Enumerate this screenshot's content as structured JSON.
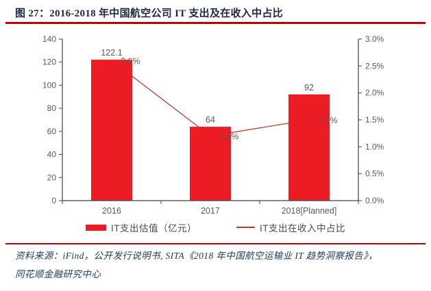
{
  "figure": {
    "title": "图 27：2016-2018 年中国航空公司 IT 支出及在收入中占比"
  },
  "chart_data": {
    "type": "bar",
    "subtype": "bar+line-dual-axis",
    "title": "2016-2018 年中国航空公司 IT 支出及在收入中占比",
    "categories": [
      "2016",
      "2017",
      "2018[Planned]"
    ],
    "series": [
      {
        "name": "IT支出估值（亿元）",
        "type": "bar",
        "axis": "left",
        "values": [
          122.1,
          64,
          92
        ],
        "labels": [
          "122.1",
          "64",
          "92"
        ],
        "color": "#ec1c24"
      },
      {
        "name": "IT支出在收入中占比",
        "type": "line",
        "axis": "right",
        "values": [
          2.6,
          1.2,
          1.5
        ],
        "labels": [
          "2.6%",
          "1.2%",
          "1.5%"
        ],
        "color": "#c0392b"
      }
    ],
    "left_axis": {
      "min": 0,
      "max": 140,
      "ticks": [
        "0",
        "20",
        "40",
        "60",
        "80",
        "100",
        "120",
        "140"
      ]
    },
    "right_axis": {
      "min": 0,
      "max": 3,
      "ticks": [
        "0.0%",
        "0.5%",
        "1.0%",
        "1.5%",
        "2.0%",
        "2.5%",
        "3.0%"
      ]
    },
    "grid": false,
    "legend_position": "bottom"
  },
  "source": {
    "line1": "资料来源：iFind，公开发行说明书, SITA《2018 年中国航空运输业 IT 趋势洞察报告》，",
    "line2": "同花顺金融研究中心"
  },
  "colors": {
    "bar": "#ec1c24",
    "line": "#c0392b",
    "rule": "#c00000",
    "title_text": "#1c2840",
    "axis_text": "#595959",
    "label_text": "#595959",
    "legend_text": "#4a4a4a",
    "source_text": "#1b3a5c",
    "axis_line": "#404040"
  }
}
